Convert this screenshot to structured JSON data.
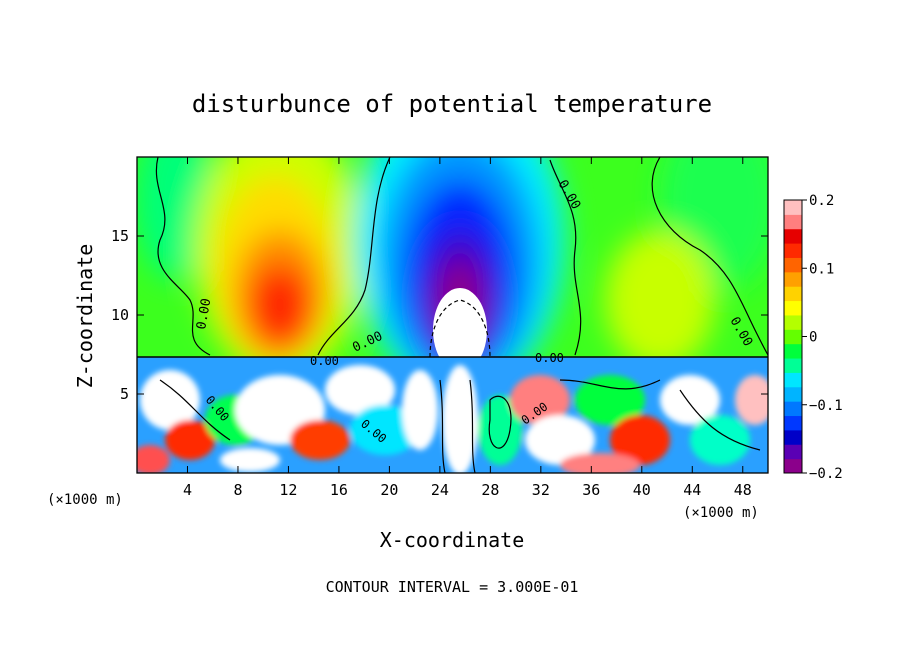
{
  "chart_data": {
    "type": "heatmap",
    "title": "disturbunce of potential temperature",
    "xlabel": "X-coordinate",
    "ylabel": "Z-coordinate",
    "x_unit_left": "(×1000 m)",
    "x_unit_right": "(×1000 m)",
    "xlim": [
      0,
      50
    ],
    "ylim": [
      0,
      20
    ],
    "x_ticks": [
      4,
      8,
      12,
      16,
      20,
      24,
      28,
      32,
      36,
      40,
      44,
      48
    ],
    "x_tick_labels": [
      "4",
      "8",
      "12",
      "16",
      "20",
      "24",
      "28",
      "32",
      "36",
      "40",
      "44",
      "48"
    ],
    "y_ticks": [
      5,
      10,
      15
    ],
    "y_tick_labels": [
      "5",
      "10",
      "15"
    ],
    "colorbar": {
      "min": -0.2,
      "max": 0.2,
      "ticks": [
        0.2,
        0.1,
        0,
        -0.1,
        -0.2
      ],
      "tick_labels": [
        "0.2",
        "0.1",
        "0",
        "−0.1",
        "−0.2"
      ],
      "colors": [
        "#8b008b",
        "#5a00b4",
        "#0000c8",
        "#0038ff",
        "#0078ff",
        "#00b4ff",
        "#00e6ff",
        "#00ff96",
        "#00ff3c",
        "#64ff00",
        "#b4ff00",
        "#ffff00",
        "#ffd200",
        "#ffa000",
        "#ff6400",
        "#ff2a00",
        "#e60000",
        "#ff7f7f",
        "#ffc0c0"
      ]
    },
    "contour_labels": [
      "0.00",
      "0.00",
      "0.00",
      "0.00",
      "0.00",
      "0.00",
      "0.00",
      "0.00",
      "0.00"
    ],
    "footer": "CONTOUR INTERVAL = 3.000E-01"
  }
}
